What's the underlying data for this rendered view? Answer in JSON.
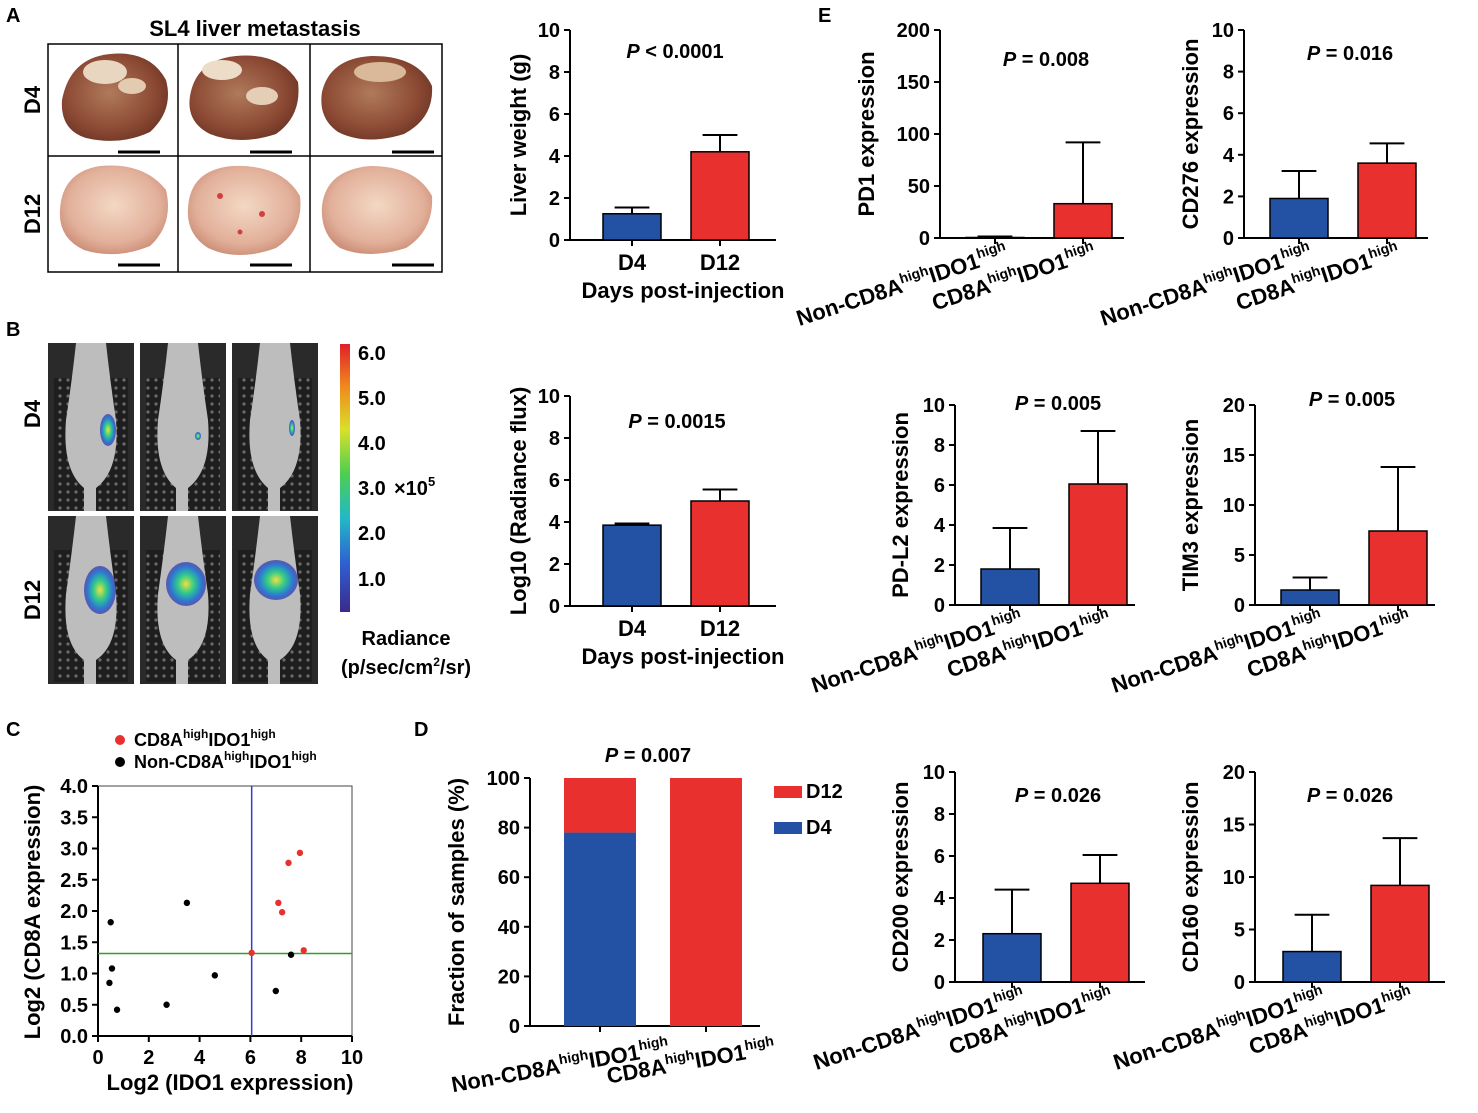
{
  "colors": {
    "blue": "#2351a4",
    "red": "#e8302e",
    "green": "#2ca02c",
    "vline": "#3a3ad0"
  },
  "panel_a": {
    "letter": "A",
    "title": "SL4 liver metastasis",
    "rows": [
      "D4",
      "D12"
    ]
  },
  "panel_b": {
    "letter": "B",
    "rows": [
      "D4",
      "D12"
    ],
    "colorbar": {
      "ticks": [
        "6.0",
        "5.0",
        "4.0",
        "3.0",
        "2.0",
        "1.0"
      ],
      "multiplier": "×10",
      "exponent": "5",
      "label": "Radiance",
      "unit_pre": "(p/sec/cm",
      "unit_sup": "2",
      "unit_post": "/sr)"
    }
  },
  "panel_c_letter": "C",
  "panel_d_letter": "D",
  "panel_e_letter": "E",
  "chart_data": [
    {
      "id": "liver_weight",
      "type": "bar",
      "categories": [
        "D4",
        "D12"
      ],
      "values": [
        1.25,
        4.2
      ],
      "errors": [
        0.3,
        0.8
      ],
      "ylim": [
        0,
        10
      ],
      "yticks": [
        0,
        2,
        4,
        6,
        8,
        10
      ],
      "ylabel": "Liver weight (g)",
      "xlabel": "Days post-injection",
      "p_value": "< 0.0001",
      "p_symbol": "P"
    },
    {
      "id": "radiance_flux",
      "type": "bar",
      "categories": [
        "D4",
        "D12"
      ],
      "values": [
        3.85,
        5.0
      ],
      "errors": [
        0.08,
        0.55
      ],
      "ylim": [
        0,
        10
      ],
      "yticks": [
        0,
        2,
        4,
        6,
        8,
        10
      ],
      "ylabel": "Log10 (Radiance flux)",
      "xlabel": "Days post-injection",
      "p_value": "= 0.0015",
      "p_symbol": "P"
    },
    {
      "id": "scatter_cd8a_ido1",
      "type": "scatter",
      "xlabel": "Log2 (IDO1 expression)",
      "ylabel": "Log2 (CD8A expression)",
      "xlim": [
        0,
        10
      ],
      "ylim": [
        0,
        4
      ],
      "xticks": [
        0,
        2,
        4,
        6,
        8,
        10
      ],
      "yticks": [
        "0.0",
        "0.5",
        "1.0",
        "1.5",
        "2.0",
        "2.5",
        "3.0",
        "3.5",
        "4.0"
      ],
      "thresholds": {
        "x": 6.05,
        "y": 1.32
      },
      "legend": [
        {
          "name": "CD8A",
          "sup": "high",
          "name2": "IDO1",
          "sup2": "high",
          "color": "red"
        },
        {
          "name": "Non-CD8A",
          "sup": "high",
          "name2": "IDO1",
          "sup2": "high",
          "color": "black"
        }
      ],
      "series": [
        {
          "name": "CD8AhighIDO1high",
          "points": [
            [
              7.5,
              2.77
            ],
            [
              7.95,
              2.93
            ],
            [
              7.1,
              2.13
            ],
            [
              7.25,
              1.98
            ],
            [
              8.1,
              1.37
            ],
            [
              6.05,
              1.33
            ]
          ]
        },
        {
          "name": "Non-CD8AhighIDO1high",
          "points": [
            [
              0.5,
              1.82
            ],
            [
              3.5,
              2.13
            ],
            [
              0.55,
              1.08
            ],
            [
              0.45,
              0.85
            ],
            [
              0.75,
              0.42
            ],
            [
              2.7,
              0.5
            ],
            [
              4.6,
              0.97
            ],
            [
              7.6,
              1.3
            ],
            [
              7.0,
              0.72
            ]
          ]
        }
      ]
    },
    {
      "id": "fraction_samples",
      "type": "stacked_bar",
      "categories": [
        {
          "a": "Non-CD8A",
          "sa": "high",
          "b": "IDO1",
          "sb": "high"
        },
        {
          "a": "CD8A",
          "sa": "high",
          "b": "IDO1",
          "sb": "high"
        }
      ],
      "series": [
        {
          "name": "D4",
          "values": [
            78,
            0
          ]
        },
        {
          "name": "D12",
          "values": [
            22,
            100
          ]
        }
      ],
      "ylim": [
        0,
        100
      ],
      "yticks": [
        0,
        20,
        40,
        60,
        80,
        100
      ],
      "ylabel": "Fraction of samples (%)",
      "p_value": "= 0.007",
      "p_symbol": "P",
      "legend": [
        "D12",
        "D4"
      ]
    },
    {
      "id": "pd1",
      "type": "bar",
      "values": [
        0.5,
        33
      ],
      "errors": [
        1.0,
        59
      ],
      "ylim": [
        0,
        200
      ],
      "yticks": [
        0,
        50,
        100,
        150,
        200
      ],
      "ylabel": "PD1 expression",
      "p_value": "= 0.008",
      "p_symbol": "P",
      "categories": [
        {
          "a": "Non-CD8A",
          "sa": "high",
          "b": "IDO1",
          "sb": "high"
        },
        {
          "a": "CD8A",
          "sa": "high",
          "b": "IDO1",
          "sb": "high"
        }
      ]
    },
    {
      "id": "cd276",
      "type": "bar",
      "values": [
        1.9,
        3.6
      ],
      "errors": [
        1.32,
        0.95
      ],
      "ylim": [
        0,
        10
      ],
      "yticks": [
        0,
        2,
        4,
        6,
        8,
        10
      ],
      "ylabel": "CD276 expression",
      "p_value": "= 0.016",
      "p_symbol": "P",
      "categories": [
        {
          "a": "Non-CD8A",
          "sa": "high",
          "b": "IDO1",
          "sb": "high"
        },
        {
          "a": "CD8A",
          "sa": "high",
          "b": "IDO1",
          "sb": "high"
        }
      ]
    },
    {
      "id": "pdl2",
      "type": "bar",
      "values": [
        1.8,
        6.05
      ],
      "errors": [
        2.05,
        2.65
      ],
      "ylim": [
        0,
        10
      ],
      "yticks": [
        0,
        2,
        4,
        6,
        8,
        10
      ],
      "ylabel": "PD-L2 expression",
      "p_value": "= 0.005",
      "p_symbol": "P",
      "categories": [
        {
          "a": "Non-CD8A",
          "sa": "high",
          "b": "IDO1",
          "sb": "high"
        },
        {
          "a": "CD8A",
          "sa": "high",
          "b": "IDO1",
          "sb": "high"
        }
      ]
    },
    {
      "id": "tim3",
      "type": "bar",
      "values": [
        1.5,
        7.4
      ],
      "errors": [
        1.25,
        6.4
      ],
      "ylim": [
        0,
        20
      ],
      "yticks": [
        0,
        5,
        10,
        15,
        20
      ],
      "ylabel": "TIM3 expression",
      "p_value": "= 0.005",
      "p_symbol": "P",
      "categories": [
        {
          "a": "Non-CD8A",
          "sa": "high",
          "b": "IDO1",
          "sb": "high"
        },
        {
          "a": "CD8A",
          "sa": "high",
          "b": "IDO1",
          "sb": "high"
        }
      ]
    },
    {
      "id": "cd200",
      "type": "bar",
      "values": [
        2.3,
        4.7
      ],
      "errors": [
        2.1,
        1.35
      ],
      "ylim": [
        0,
        10
      ],
      "yticks": [
        0,
        2,
        4,
        6,
        8,
        10
      ],
      "ylabel": "CD200 expression",
      "p_value": "= 0.026",
      "p_symbol": "P",
      "categories": [
        {
          "a": "Non-CD8A",
          "sa": "high",
          "b": "IDO1",
          "sb": "high"
        },
        {
          "a": "CD8A",
          "sa": "high",
          "b": "IDO1",
          "sb": "high"
        }
      ]
    },
    {
      "id": "cd160",
      "type": "bar",
      "values": [
        2.9,
        9.2
      ],
      "errors": [
        3.5,
        4.5
      ],
      "ylim": [
        0,
        20
      ],
      "yticks": [
        0,
        5,
        10,
        15,
        20
      ],
      "ylabel": "CD160 expression",
      "p_value": "= 0.026",
      "p_symbol": "P",
      "categories": [
        {
          "a": "Non-CD8A",
          "sa": "high",
          "b": "IDO1",
          "sb": "high"
        },
        {
          "a": "CD8A",
          "sa": "high",
          "b": "IDO1",
          "sb": "high"
        }
      ]
    }
  ]
}
